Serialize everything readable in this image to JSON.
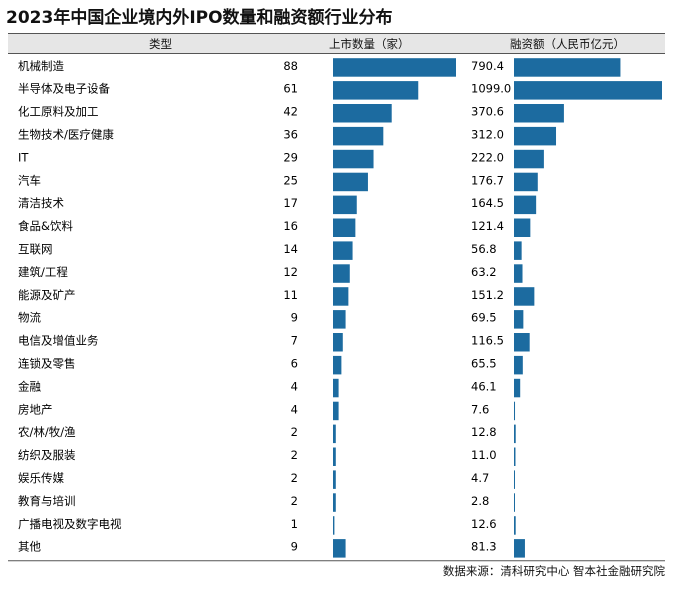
{
  "title": "2023年中国企业境内外IPO数量和融资额行业分布",
  "source": "数据来源：清科研究中心 智本社金融研究院",
  "colors": {
    "bar": "#1c6ba0",
    "header_bg": "#e6e6e6"
  },
  "chart_data": {
    "type": "bar",
    "orientation": "horizontal",
    "column_headers": [
      "类型",
      "上市数量（家）",
      "融资额（人民币亿元）"
    ],
    "categories": [
      "机械制造",
      "半导体及电子设备",
      "化工原料及加工",
      "生物技术/医疗健康",
      "IT",
      "汽车",
      "清洁技术",
      "食品&饮料",
      "互联网",
      "建筑/工程",
      "能源及矿产",
      "物流",
      "电信及增值业务",
      "连锁及零售",
      "金融",
      "房地产",
      "农/林/牧/渔",
      "纺织及服装",
      "娱乐传媒",
      "教育与培训",
      "广播电视及数字电视",
      "其他"
    ],
    "series": [
      {
        "name": "上市数量（家）",
        "values": [
          88,
          61,
          42,
          36,
          29,
          25,
          17,
          16,
          14,
          12,
          11,
          9,
          7,
          6,
          4,
          4,
          2,
          2,
          2,
          2,
          1,
          9
        ],
        "labels": [
          "88",
          "61",
          "42",
          "36",
          "29",
          "25",
          "17",
          "16",
          "14",
          "12",
          "11",
          "9",
          "7",
          "6",
          "4",
          "4",
          "2",
          "2",
          "2",
          "2",
          "1",
          "9"
        ]
      },
      {
        "name": "融资额（人民币亿元）",
        "values": [
          790.4,
          1099.0,
          370.6,
          312.0,
          222.0,
          176.7,
          164.5,
          121.4,
          56.8,
          63.2,
          151.2,
          69.5,
          116.5,
          65.5,
          46.1,
          7.6,
          12.8,
          11.0,
          4.7,
          2.8,
          12.6,
          81.3
        ],
        "labels": [
          "790.4",
          "1099.0",
          "370.6",
          "312.0",
          "222.0",
          "176.7",
          "164.5",
          "121.4",
          "56.8",
          "63.2",
          "151.2",
          "69.5",
          "116.5",
          "65.5",
          "46.1",
          "7.6",
          "12.8",
          "11.0",
          "4.7",
          "2.8",
          "12.6",
          "81.3"
        ]
      }
    ]
  }
}
